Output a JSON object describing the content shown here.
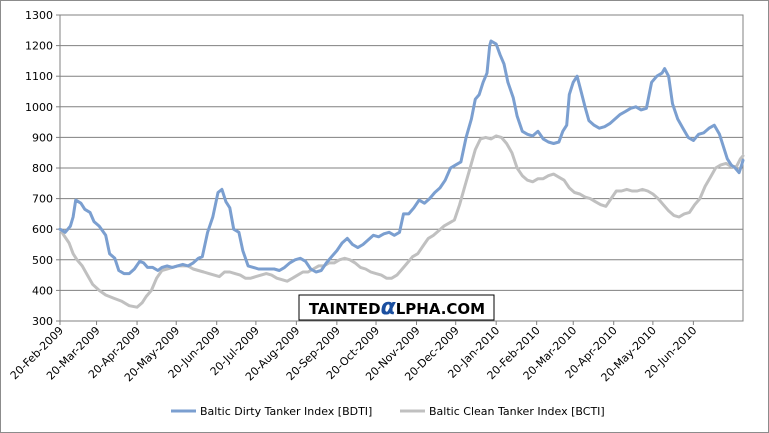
{
  "watermark": {
    "part1": "TAINTED",
    "alpha": "α",
    "part2": "LPHA.COM"
  },
  "chart_data": {
    "type": "line",
    "title": "",
    "xlabel": "",
    "ylabel": "",
    "ylim": [
      300,
      1300
    ],
    "yticks": [
      300,
      400,
      500,
      600,
      700,
      800,
      900,
      1000,
      1100,
      1200,
      1300
    ],
    "xlim": [
      "2009-02-20",
      "2010-07-28"
    ],
    "xtick_labels": [
      "20-Feb-2009",
      "20-Mar-2009",
      "20-Apr-2009",
      "20-May-2009",
      "20-Jun-2009",
      "20-Jul-2009",
      "20-Aug-2009",
      "20-Sep-2009",
      "20-Oct-2009",
      "20-Nov-2009",
      "20-Dec-2009",
      "20-Jan-2010",
      "20-Feb-2010",
      "20-Mar-2010",
      "20-Apr-2010",
      "20-May-2010",
      "20-Jun-2010"
    ],
    "grid": true,
    "legend_position": "bottom",
    "series": [
      {
        "name": "Baltic Dirty Tanker Index [BDTI]",
        "color": "#7b9fd0",
        "points": [
          [
            "2009-02-20",
            600
          ],
          [
            "2009-02-24",
            590
          ],
          [
            "2009-02-28",
            610
          ],
          [
            "2009-03-02",
            640
          ],
          [
            "2009-03-04",
            695
          ],
          [
            "2009-03-08",
            685
          ],
          [
            "2009-03-11",
            665
          ],
          [
            "2009-03-15",
            655
          ],
          [
            "2009-03-18",
            625
          ],
          [
            "2009-03-22",
            610
          ],
          [
            "2009-03-27",
            580
          ],
          [
            "2009-03-30",
            520
          ],
          [
            "2009-04-03",
            505
          ],
          [
            "2009-04-06",
            465
          ],
          [
            "2009-04-10",
            455
          ],
          [
            "2009-04-14",
            455
          ],
          [
            "2009-04-18",
            470
          ],
          [
            "2009-04-22",
            495
          ],
          [
            "2009-04-25",
            490
          ],
          [
            "2009-04-28",
            475
          ],
          [
            "2009-05-02",
            475
          ],
          [
            "2009-05-06",
            465
          ],
          [
            "2009-05-09",
            475
          ],
          [
            "2009-05-13",
            480
          ],
          [
            "2009-05-17",
            475
          ],
          [
            "2009-05-21",
            480
          ],
          [
            "2009-05-25",
            485
          ],
          [
            "2009-05-29",
            480
          ],
          [
            "2009-06-02",
            490
          ],
          [
            "2009-06-06",
            505
          ],
          [
            "2009-06-09",
            510
          ],
          [
            "2009-06-13",
            590
          ],
          [
            "2009-06-17",
            640
          ],
          [
            "2009-06-21",
            720
          ],
          [
            "2009-06-24",
            730
          ],
          [
            "2009-06-27",
            690
          ],
          [
            "2009-06-30",
            670
          ],
          [
            "2009-07-03",
            600
          ],
          [
            "2009-07-07",
            590
          ],
          [
            "2009-07-10",
            530
          ],
          [
            "2009-07-14",
            480
          ],
          [
            "2009-07-18",
            475
          ],
          [
            "2009-07-22",
            470
          ],
          [
            "2009-07-26",
            470
          ],
          [
            "2009-07-30",
            470
          ],
          [
            "2009-08-03",
            470
          ],
          [
            "2009-08-07",
            465
          ],
          [
            "2009-08-11",
            475
          ],
          [
            "2009-08-15",
            490
          ],
          [
            "2009-08-19",
            500
          ],
          [
            "2009-08-23",
            505
          ],
          [
            "2009-08-27",
            495
          ],
          [
            "2009-08-31",
            470
          ],
          [
            "2009-09-04",
            460
          ],
          [
            "2009-09-08",
            465
          ],
          [
            "2009-09-12",
            490
          ],
          [
            "2009-09-16",
            510
          ],
          [
            "2009-09-20",
            530
          ],
          [
            "2009-09-24",
            555
          ],
          [
            "2009-09-28",
            570
          ],
          [
            "2009-10-02",
            550
          ],
          [
            "2009-10-06",
            540
          ],
          [
            "2009-10-10",
            550
          ],
          [
            "2009-10-14",
            565
          ],
          [
            "2009-10-18",
            580
          ],
          [
            "2009-10-22",
            575
          ],
          [
            "2009-10-26",
            585
          ],
          [
            "2009-10-30",
            590
          ],
          [
            "2009-11-03",
            580
          ],
          [
            "2009-11-07",
            590
          ],
          [
            "2009-11-10",
            650
          ],
          [
            "2009-11-14",
            650
          ],
          [
            "2009-11-18",
            670
          ],
          [
            "2009-11-22",
            695
          ],
          [
            "2009-11-26",
            685
          ],
          [
            "2009-11-30",
            700
          ],
          [
            "2009-12-04",
            720
          ],
          [
            "2009-12-08",
            735
          ],
          [
            "2009-12-12",
            760
          ],
          [
            "2009-12-16",
            800
          ],
          [
            "2009-12-20",
            810
          ],
          [
            "2009-12-24",
            820
          ],
          [
            "2009-12-28",
            900
          ],
          [
            "2010-01-01",
            960
          ],
          [
            "2010-01-04",
            1025
          ],
          [
            "2010-01-07",
            1040
          ],
          [
            "2010-01-10",
            1080
          ],
          [
            "2010-01-13",
            1110
          ],
          [
            "2010-01-15",
            1200
          ],
          [
            "2010-01-16",
            1215
          ],
          [
            "2010-01-20",
            1205
          ],
          [
            "2010-01-23",
            1170
          ],
          [
            "2010-01-26",
            1140
          ],
          [
            "2010-01-29",
            1080
          ],
          [
            "2010-02-02",
            1030
          ],
          [
            "2010-02-05",
            970
          ],
          [
            "2010-02-09",
            920
          ],
          [
            "2010-02-13",
            910
          ],
          [
            "2010-02-17",
            905
          ],
          [
            "2010-02-21",
            920
          ],
          [
            "2010-02-25",
            895
          ],
          [
            "2010-03-01",
            885
          ],
          [
            "2010-03-05",
            880
          ],
          [
            "2010-03-09",
            885
          ],
          [
            "2010-03-12",
            920
          ],
          [
            "2010-03-15",
            940
          ],
          [
            "2010-03-17",
            1040
          ],
          [
            "2010-03-20",
            1080
          ],
          [
            "2010-03-23",
            1100
          ],
          [
            "2010-03-26",
            1050
          ],
          [
            "2010-03-29",
            1000
          ],
          [
            "2010-04-01",
            955
          ],
          [
            "2010-04-05",
            940
          ],
          [
            "2010-04-09",
            930
          ],
          [
            "2010-04-13",
            935
          ],
          [
            "2010-04-17",
            945
          ],
          [
            "2010-04-21",
            960
          ],
          [
            "2010-04-25",
            975
          ],
          [
            "2010-04-29",
            985
          ],
          [
            "2010-05-03",
            995
          ],
          [
            "2010-05-07",
            1000
          ],
          [
            "2010-05-11",
            990
          ],
          [
            "2010-05-15",
            995
          ],
          [
            "2010-05-19",
            1080
          ],
          [
            "2010-05-23",
            1100
          ],
          [
            "2010-05-27",
            1110
          ],
          [
            "2010-05-29",
            1125
          ],
          [
            "2010-06-01",
            1100
          ],
          [
            "2010-06-04",
            1010
          ],
          [
            "2010-06-08",
            960
          ],
          [
            "2010-06-12",
            930
          ],
          [
            "2010-06-16",
            900
          ],
          [
            "2010-06-20",
            890
          ],
          [
            "2010-06-24",
            910
          ],
          [
            "2010-06-28",
            915
          ],
          [
            "2010-07-02",
            930
          ],
          [
            "2010-07-06",
            940
          ],
          [
            "2010-07-10",
            910
          ],
          [
            "2010-07-13",
            870
          ],
          [
            "2010-07-16",
            830
          ],
          [
            "2010-07-19",
            810
          ],
          [
            "2010-07-22",
            800
          ],
          [
            "2010-07-25",
            785
          ],
          [
            "2010-07-27",
            810
          ],
          [
            "2010-07-28",
            825
          ]
        ]
      },
      {
        "name": "Baltic Clean Tanker Index [BCTI]",
        "color": "#c0c0c0",
        "points": [
          [
            "2009-02-20",
            600
          ],
          [
            "2009-02-23",
            580
          ],
          [
            "2009-02-27",
            555
          ],
          [
            "2009-03-02",
            520
          ],
          [
            "2009-03-05",
            500
          ],
          [
            "2009-03-09",
            480
          ],
          [
            "2009-03-13",
            450
          ],
          [
            "2009-03-17",
            420
          ],
          [
            "2009-03-22",
            400
          ],
          [
            "2009-03-27",
            385
          ],
          [
            "2009-04-02",
            375
          ],
          [
            "2009-04-08",
            365
          ],
          [
            "2009-04-14",
            350
          ],
          [
            "2009-04-20",
            345
          ],
          [
            "2009-04-24",
            360
          ],
          [
            "2009-04-27",
            380
          ],
          [
            "2009-05-01",
            400
          ],
          [
            "2009-05-05",
            440
          ],
          [
            "2009-05-09",
            465
          ],
          [
            "2009-05-13",
            470
          ],
          [
            "2009-05-17",
            475
          ],
          [
            "2009-05-21",
            480
          ],
          [
            "2009-05-25",
            480
          ],
          [
            "2009-05-29",
            480
          ],
          [
            "2009-06-02",
            470
          ],
          [
            "2009-06-06",
            465
          ],
          [
            "2009-06-10",
            460
          ],
          [
            "2009-06-14",
            455
          ],
          [
            "2009-06-18",
            450
          ],
          [
            "2009-06-22",
            445
          ],
          [
            "2009-06-26",
            460
          ],
          [
            "2009-06-30",
            460
          ],
          [
            "2009-07-04",
            455
          ],
          [
            "2009-07-08",
            450
          ],
          [
            "2009-07-12",
            440
          ],
          [
            "2009-07-16",
            440
          ],
          [
            "2009-07-20",
            445
          ],
          [
            "2009-07-24",
            450
          ],
          [
            "2009-07-28",
            455
          ],
          [
            "2009-08-01",
            450
          ],
          [
            "2009-08-05",
            440
          ],
          [
            "2009-08-09",
            435
          ],
          [
            "2009-08-13",
            430
          ],
          [
            "2009-08-17",
            440
          ],
          [
            "2009-08-21",
            450
          ],
          [
            "2009-08-25",
            460
          ],
          [
            "2009-08-29",
            460
          ],
          [
            "2009-09-02",
            470
          ],
          [
            "2009-09-06",
            480
          ],
          [
            "2009-09-10",
            480
          ],
          [
            "2009-09-14",
            490
          ],
          [
            "2009-09-18",
            490
          ],
          [
            "2009-09-22",
            500
          ],
          [
            "2009-09-26",
            505
          ],
          [
            "2009-09-30",
            500
          ],
          [
            "2009-10-04",
            490
          ],
          [
            "2009-10-08",
            475
          ],
          [
            "2009-10-12",
            470
          ],
          [
            "2009-10-16",
            460
          ],
          [
            "2009-10-20",
            455
          ],
          [
            "2009-10-24",
            450
          ],
          [
            "2009-10-28",
            440
          ],
          [
            "2009-11-01",
            440
          ],
          [
            "2009-11-05",
            450
          ],
          [
            "2009-11-09",
            470
          ],
          [
            "2009-11-13",
            490
          ],
          [
            "2009-11-17",
            510
          ],
          [
            "2009-11-21",
            520
          ],
          [
            "2009-11-25",
            545
          ],
          [
            "2009-11-29",
            570
          ],
          [
            "2009-12-03",
            580
          ],
          [
            "2009-12-07",
            595
          ],
          [
            "2009-12-11",
            610
          ],
          [
            "2009-12-15",
            620
          ],
          [
            "2009-12-19",
            630
          ],
          [
            "2009-12-23",
            680
          ],
          [
            "2009-12-27",
            740
          ],
          [
            "2009-12-31",
            800
          ],
          [
            "2010-01-04",
            860
          ],
          [
            "2010-01-08",
            895
          ],
          [
            "2010-01-12",
            900
          ],
          [
            "2010-01-16",
            895
          ],
          [
            "2010-01-20",
            905
          ],
          [
            "2010-01-24",
            900
          ],
          [
            "2010-01-28",
            880
          ],
          [
            "2010-02-01",
            850
          ],
          [
            "2010-02-05",
            800
          ],
          [
            "2010-02-09",
            775
          ],
          [
            "2010-02-13",
            760
          ],
          [
            "2010-02-17",
            755
          ],
          [
            "2010-02-21",
            765
          ],
          [
            "2010-02-25",
            765
          ],
          [
            "2010-03-01",
            775
          ],
          [
            "2010-03-05",
            780
          ],
          [
            "2010-03-09",
            770
          ],
          [
            "2010-03-13",
            760
          ],
          [
            "2010-03-17",
            735
          ],
          [
            "2010-03-21",
            720
          ],
          [
            "2010-03-25",
            715
          ],
          [
            "2010-03-29",
            705
          ],
          [
            "2010-04-02",
            700
          ],
          [
            "2010-04-06",
            690
          ],
          [
            "2010-04-10",
            680
          ],
          [
            "2010-04-14",
            675
          ],
          [
            "2010-04-18",
            700
          ],
          [
            "2010-04-22",
            725
          ],
          [
            "2010-04-26",
            725
          ],
          [
            "2010-04-30",
            730
          ],
          [
            "2010-05-04",
            725
          ],
          [
            "2010-05-08",
            725
          ],
          [
            "2010-05-12",
            730
          ],
          [
            "2010-05-16",
            725
          ],
          [
            "2010-05-20",
            715
          ],
          [
            "2010-05-24",
            700
          ],
          [
            "2010-05-28",
            680
          ],
          [
            "2010-06-01",
            660
          ],
          [
            "2010-06-05",
            645
          ],
          [
            "2010-06-09",
            640
          ],
          [
            "2010-06-13",
            650
          ],
          [
            "2010-06-17",
            655
          ],
          [
            "2010-06-21",
            680
          ],
          [
            "2010-06-25",
            700
          ],
          [
            "2010-06-29",
            740
          ],
          [
            "2010-07-03",
            770
          ],
          [
            "2010-07-07",
            800
          ],
          [
            "2010-07-11",
            810
          ],
          [
            "2010-07-15",
            815
          ],
          [
            "2010-07-19",
            805
          ],
          [
            "2010-07-23",
            805
          ],
          [
            "2010-07-26",
            830
          ],
          [
            "2010-07-28",
            840
          ]
        ]
      }
    ]
  }
}
